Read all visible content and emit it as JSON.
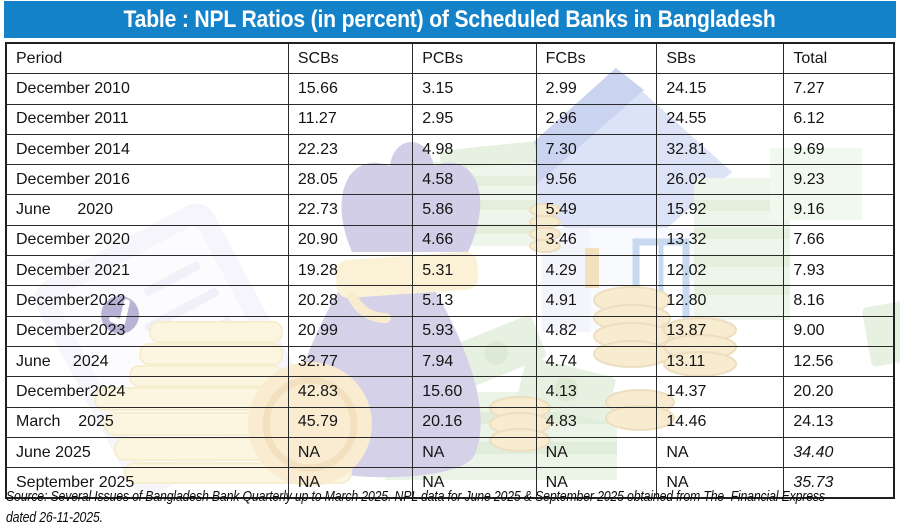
{
  "title": "Table : NPL Ratios (in percent) of Scheduled Banks in Bangladesh",
  "table": {
    "columns": [
      "Period",
      "SCBs",
      "PCBs",
      "FCBs",
      "SBs",
      "Total"
    ],
    "rows": [
      [
        "December 2010",
        "15.66",
        "3.15",
        "2.99",
        "24.15",
        "7.27"
      ],
      [
        "December 2011",
        "11.27",
        "2.95",
        "2.96",
        "24.55",
        "6.12"
      ],
      [
        "December 2014",
        "22.23",
        "4.98",
        "7.30",
        "32.81",
        "9.69"
      ],
      [
        "December 2016",
        "28.05",
        "4.58",
        "9.56",
        "26.02",
        "9.23"
      ],
      [
        "June      2020",
        "22.73",
        "5.86",
        "5.49",
        "15.92",
        "9.16"
      ],
      [
        "December 2020",
        "20.90",
        "4.66",
        "3.46",
        "13.32",
        "7.66"
      ],
      [
        "December 2021",
        "19.28",
        "5.31",
        "4.29",
        "12.02",
        "7.93"
      ],
      [
        "December2022",
        "20.28",
        "5.13",
        "4.91",
        "12.80",
        "8.16"
      ],
      [
        "December2023",
        "20.99",
        "5.93",
        "4.82",
        "13.87",
        "9.00"
      ],
      [
        "June     2024",
        "32.77",
        "7.94",
        "4.74",
        "13.11",
        "12.56"
      ],
      [
        "December2024",
        "42.83",
        "15.60",
        "4.13",
        "14.37",
        "20.20"
      ],
      [
        "March    2025",
        "45.79",
        "20.16",
        "4.83",
        "14.46",
        "24.13"
      ],
      [
        "June 2025",
        "NA",
        "NA",
        "NA",
        "NA",
        "34.40"
      ],
      [
        "September 2025",
        "NA",
        "NA",
        "NA",
        "NA",
        "35.73"
      ]
    ]
  },
  "source": {
    "line1": "Source: Several Issues of Bangladesh Bank Quarterly up to March 2025. NPL data for June 2025 & September 2025 obtained from The  Financial Express",
    "line2": "dated 26-11-2025."
  },
  "colors": {
    "title_bar_blue": "#1482C8",
    "title_text": "#FFFFFF",
    "table_border": "#2A2A2A",
    "body_text": "#141414"
  },
  "background_icons": [
    "money-bag-icon",
    "house-icon",
    "coin-stack-icon",
    "banknote-stack-icon",
    "clipboard-icon"
  ]
}
